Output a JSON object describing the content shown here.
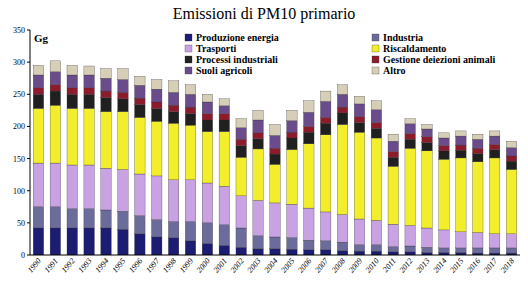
{
  "chart_data": {
    "type": "bar",
    "stacked": true,
    "title": "Emissioni di PM10 primario",
    "y_label": "Gg",
    "legend": "top",
    "grid": false,
    "categories": [
      "1990",
      "1991",
      "1992",
      "1993",
      "1994",
      "1995",
      "1996",
      "1997",
      "1998",
      "1999",
      "2000",
      "2001",
      "2002",
      "2003",
      "2004",
      "2005",
      "2006",
      "2007",
      "2008",
      "2009",
      "2010",
      "2011",
      "2012",
      "2013",
      "2014",
      "2015",
      "2016",
      "2017",
      "2018"
    ],
    "ylim": [
      0,
      350
    ],
    "yticks": [
      0,
      50,
      100,
      150,
      200,
      250,
      300,
      350
    ],
    "series": [
      {
        "name": "Produzione energia",
        "color": "#1c1c72",
        "values": [
          42,
          42,
          42,
          42,
          42,
          40,
          33,
          28,
          27,
          22,
          18,
          15,
          12,
          10,
          10,
          9,
          8,
          8,
          7,
          6,
          6,
          5,
          5,
          4,
          4,
          4,
          3,
          3,
          3
        ]
      },
      {
        "name": "Industria",
        "color": "#6c6c9c",
        "values": [
          33,
          33,
          30,
          30,
          28,
          28,
          28,
          27,
          25,
          30,
          32,
          32,
          30,
          20,
          18,
          18,
          15,
          14,
          13,
          10,
          10,
          8,
          9,
          8,
          7,
          7,
          8,
          8,
          8
        ]
      },
      {
        "name": "Trasporti",
        "color": "#c8a2e2",
        "values": [
          68,
          68,
          68,
          68,
          65,
          65,
          65,
          68,
          65,
          65,
          62,
          60,
          50,
          55,
          53,
          52,
          50,
          45,
          43,
          40,
          38,
          35,
          32,
          30,
          28,
          25,
          24,
          22,
          22
        ]
      },
      {
        "name": "Riscaldamento",
        "color": "#f2ee2c",
        "values": [
          85,
          90,
          88,
          88,
          88,
          90,
          88,
          85,
          88,
          85,
          80,
          85,
          60,
          80,
          60,
          85,
          100,
          120,
          140,
          135,
          128,
          90,
          120,
          120,
          110,
          115,
          110,
          118,
          100
        ]
      },
      {
        "name": "Processi industriali",
        "color": "#202020",
        "values": [
          22,
          22,
          22,
          22,
          22,
          20,
          20,
          20,
          18,
          18,
          18,
          18,
          18,
          16,
          16,
          18,
          18,
          18,
          18,
          15,
          15,
          14,
          14,
          13,
          13,
          12,
          13,
          13,
          13
        ]
      },
      {
        "name": "Gestione deiezioni animali",
        "color": "#8c1c2c",
        "values": [
          10,
          10,
          10,
          10,
          10,
          10,
          10,
          10,
          10,
          10,
          10,
          10,
          10,
          9,
          9,
          9,
          9,
          9,
          9,
          9,
          9,
          9,
          9,
          9,
          8,
          8,
          8,
          8,
          8
        ]
      },
      {
        "name": "Suoli agricoli",
        "color": "#6a4c8c",
        "values": [
          20,
          20,
          20,
          20,
          20,
          20,
          20,
          20,
          20,
          20,
          18,
          12,
          18,
          20,
          20,
          18,
          22,
          25,
          20,
          20,
          20,
          16,
          15,
          12,
          12,
          14,
          14,
          13,
          13
        ]
      },
      {
        "name": "Altro",
        "color": "#d6ceb6",
        "values": [
          15,
          17,
          15,
          14,
          15,
          17,
          14,
          15,
          18,
          15,
          12,
          11,
          14,
          15,
          17,
          16,
          18,
          16,
          15,
          12,
          14,
          11,
          8,
          7,
          8,
          8,
          8,
          8,
          10
        ]
      }
    ]
  }
}
